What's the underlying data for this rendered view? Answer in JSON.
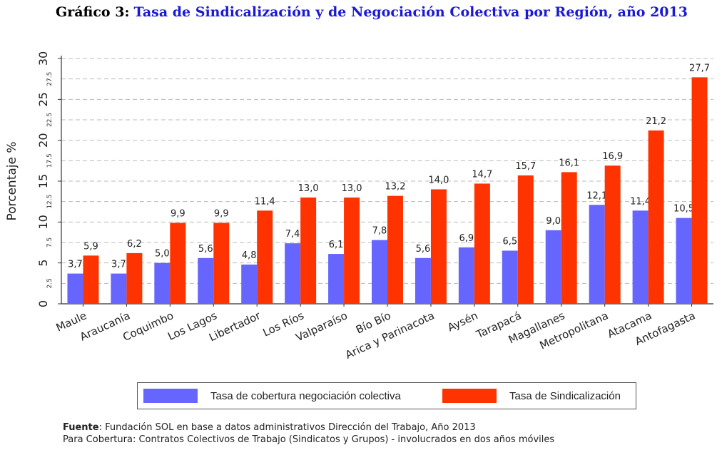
{
  "title": {
    "prefix": "Gráfico 3:",
    "main": "Tasa de Sindicalización y de Negociación Colectiva por Región, año 2013"
  },
  "colors": {
    "cobertura": "#6666ff",
    "sindicalizacion": "#ff3300",
    "grid": "#bbbbbb"
  },
  "chart_data": {
    "type": "bar",
    "ylabel": "Porcentaje %",
    "xlabel": "",
    "ylim": [
      0,
      30
    ],
    "major_ticks": [
      "0",
      "5",
      "10",
      "15",
      "20",
      "25",
      "30"
    ],
    "minor_ticks": [
      "2.5",
      "7.5",
      "12.5",
      "17.5",
      "22.5",
      "27.5"
    ],
    "major_values": [
      0,
      5,
      10,
      15,
      20,
      25,
      30
    ],
    "minor_values": [
      2.5,
      7.5,
      12.5,
      17.5,
      22.5,
      27.5
    ],
    "grid": true,
    "legend_position": "bottom",
    "categories": [
      "Maule",
      "Araucanía",
      "Coquimbo",
      "Los Lagos",
      "Libertador",
      "Los Ríos",
      "Valparaíso",
      "Bío Bío",
      "Arica y Parinacota",
      "Aysén",
      "Tarapacá",
      "Magallanes",
      "Metropolitana",
      "Atacama",
      "Antofagasta"
    ],
    "series": [
      {
        "name": "Tasa de cobertura negociación colectiva",
        "values": [
          3.7,
          3.7,
          5.0,
          5.6,
          4.8,
          7.4,
          6.1,
          7.8,
          5.6,
          6.9,
          6.5,
          9.0,
          12.1,
          11.4,
          10.5
        ],
        "labels": [
          "3,7",
          "3,7",
          "5,0",
          "5,6",
          "4,8",
          "7,4",
          "6,1",
          "7,8",
          "5,6",
          "6,9",
          "6,5",
          "9,0",
          "12,1",
          "11,4",
          "10,5"
        ]
      },
      {
        "name": "Tasa de Sindicalización",
        "values": [
          5.9,
          6.2,
          9.9,
          9.9,
          11.4,
          13.0,
          13.0,
          13.2,
          14.0,
          14.7,
          15.7,
          16.1,
          16.9,
          21.2,
          27.7
        ],
        "labels": [
          "5,9",
          "6,2",
          "9,9",
          "9,9",
          "11,4",
          "13,0",
          "13,0",
          "13,2",
          "14,0",
          "14,7",
          "15,7",
          "16,1",
          "16,9",
          "21,2",
          "27,7"
        ]
      }
    ]
  },
  "legend": {
    "cobertura": "Tasa de cobertura negociación colectiva",
    "sindicalizacion": "Tasa de Sindicalización"
  },
  "source": {
    "label": "Fuente",
    "line1": ": Fundación SOL en base a datos administrativos Dirección del Trabajo, Año 2013",
    "line2": "Para Cobertura: Contratos Colectivos de Trabajo (Sindicatos y Grupos) - involucrados en dos años móviles"
  }
}
